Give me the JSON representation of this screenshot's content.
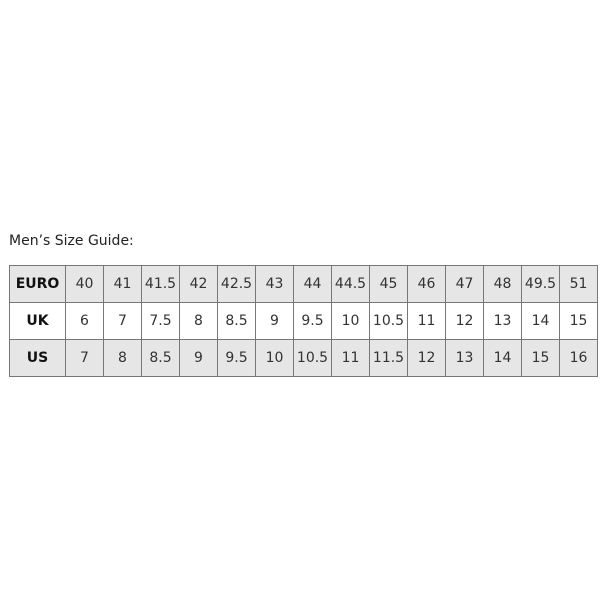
{
  "title": "Men’s Size Guide:",
  "rows": [
    {
      "label": "EURO",
      "values": [
        "40",
        "41",
        "41.5",
        "42",
        "42.5",
        "43",
        "44",
        "44.5",
        "45",
        "46",
        "47",
        "48",
        "49.5",
        "51"
      ]
    },
    {
      "label": "UK",
      "values": [
        "6",
        "7",
        "7.5",
        "8",
        "8.5",
        "9",
        "9.5",
        "10",
        "10.5",
        "11",
        "12",
        "13",
        "14",
        "15"
      ]
    },
    {
      "label": "US",
      "values": [
        "7",
        "8",
        "8.5",
        "9",
        "9.5",
        "10",
        "10.5",
        "11",
        "11.5",
        "12",
        "13",
        "14",
        "15",
        "16"
      ]
    }
  ],
  "colors": {
    "shaded_row": "#e6e6e6",
    "border": "#777777"
  }
}
